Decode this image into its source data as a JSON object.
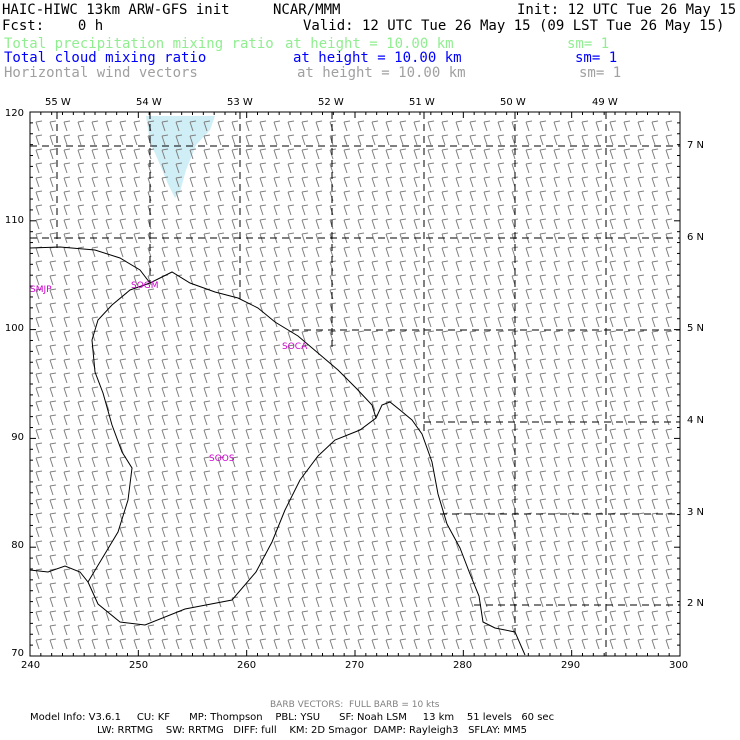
{
  "header": {
    "left_line1": "HAIC-HIWC 13km ARW-GFS init",
    "org": "NCAR/MMM",
    "init": "Init: 12 UTC Tue 26 May 15",
    "fcst": "Fcst:    0 h",
    "valid": "Valid: 12 UTC Tue 26 May 15 (09 LST Tue 26 May 15)"
  },
  "fields": [
    {
      "name": "Total precipitation mixing ratio",
      "level": "at height = 10.00 km",
      "sm": "sm= 1",
      "color": "#90ee90"
    },
    {
      "name": "Total cloud mixing ratio",
      "level": "at height = 10.00 km",
      "sm": "sm= 1",
      "color": "#0000ff"
    },
    {
      "name": "Horizontal wind vectors",
      "level": "at height = 10.00 km",
      "sm": "sm= 1",
      "color": "#a0a0a0"
    }
  ],
  "map": {
    "x_ticks": [
      "240",
      "250",
      "260",
      "270",
      "280",
      "290",
      "300"
    ],
    "y_ticks": [
      "120",
      "110",
      "100",
      "90",
      "80",
      "70"
    ],
    "lon_labels": [
      "55 W",
      "54 W",
      "53 W",
      "52 W",
      "51 W",
      "50 W",
      "49 W"
    ],
    "lat_labels": [
      "7 N",
      "6 N",
      "5 N",
      "4 N",
      "3 N",
      "2 N"
    ],
    "stations": [
      "SMJP",
      "SOGM",
      "SOCA",
      "SOOS"
    ],
    "colors": {
      "coast": "#000000",
      "barb": "#808080",
      "grid": "#000000",
      "station": "#cc00cc",
      "cloud": "#cfeef6"
    }
  },
  "footer": {
    "barb_note": "BARB VECTORS:  FULL BARB = 10 kts",
    "line1": "Model Info: V3.6.1     CU: KF      MP: Thompson    PBL: YSU      SF: Noah LSM     13 km    51 levels   60 sec",
    "line2": "LW: RRTMG    SW: RRTMG   DIFF: full    KM: 2D Smagor  DAMP: Rayleigh3   SFLAY: MM5"
  }
}
